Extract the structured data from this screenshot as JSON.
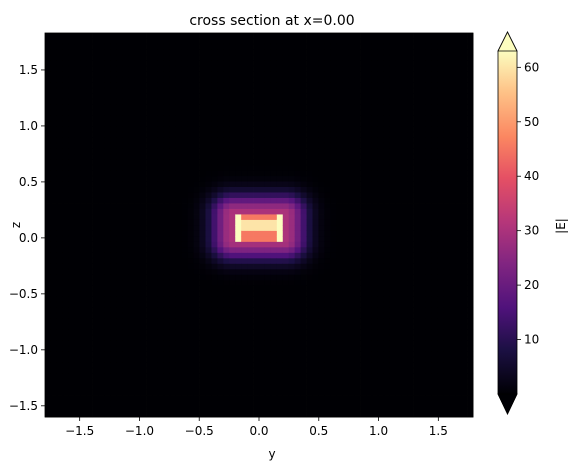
{
  "chart_data": {
    "type": "heatmap",
    "title": "cross section at x=0.00",
    "xlabel": "y",
    "ylabel": "z",
    "xlim": [
      -1.79,
      1.79
    ],
    "ylim": [
      -1.6,
      1.83
    ],
    "x_ticks": [
      -1.5,
      -1.0,
      -0.5,
      0.0,
      0.5,
      1.0,
      1.5
    ],
    "x_tick_labels": [
      "−1.5",
      "−1.0",
      "−0.5",
      "0.0",
      "0.5",
      "1.0",
      "1.5"
    ],
    "y_ticks": [
      1.5,
      1.0,
      0.5,
      0.0,
      -0.5,
      -1.0,
      -1.5
    ],
    "y_tick_labels": [
      "1.5",
      "1.0",
      "0.5",
      "0.0",
      "−0.5",
      "−1.0",
      "−1.5"
    ],
    "colormap": "magma",
    "colorbar": {
      "label": "|E|",
      "range": [
        0,
        63
      ],
      "ticks": [
        10,
        20,
        30,
        40,
        50,
        60
      ],
      "tick_labels": [
        "10",
        "20",
        "30",
        "40",
        "50",
        "60"
      ],
      "extend": "both"
    },
    "field_peak": {
      "y_center": 0.0,
      "z_center": 0.1,
      "max_value": 63,
      "core_half_width_y": 0.22,
      "core_half_height_z": 0.12
    },
    "grid": false
  }
}
